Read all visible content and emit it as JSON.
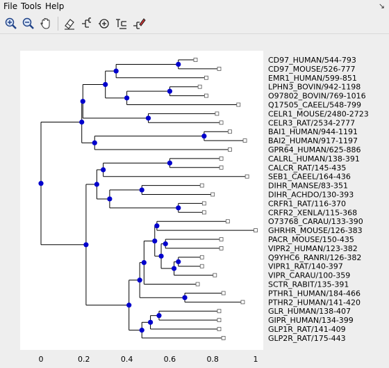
{
  "menu": {
    "file": "File",
    "tools": "Tools",
    "help": "Help"
  },
  "toolbar": {
    "icons": [
      "zoom-in-icon",
      "zoom-out-icon",
      "hand-pan-icon",
      "eraser-icon",
      "tree-bracket-icon",
      "reroot-icon",
      "tree-text-icon",
      "tree-color-icon"
    ]
  },
  "colors": {
    "node": "#0000cc",
    "edge": "#000000",
    "plot_background": "#ffffff",
    "window_background": "#eeeeee"
  },
  "axis": {
    "min": 0,
    "max": 1,
    "ticks": [
      "0",
      "0.2",
      "0.4",
      "0.6",
      "0.8",
      "1"
    ]
  },
  "tree": {
    "leaves": [
      {
        "label": "CD97_HUMAN/544-793",
        "dist": 0.72
      },
      {
        "label": "CD97_MOUSE/526-777",
        "dist": 0.83
      },
      {
        "label": "EMR1_HUMAN/599-851",
        "dist": 0.77
      },
      {
        "label": "LPHN3_BOVIN/942-1198",
        "dist": 0.74
      },
      {
        "label": "O97802_BOVIN/769-1016",
        "dist": 0.77
      },
      {
        "label": "Q17505_CAEEL/548-799",
        "dist": 0.92
      },
      {
        "label": "CELR1_MOUSE/2480-2723",
        "dist": 0.82
      },
      {
        "label": "CELR3_RAT/2534-2777",
        "dist": 0.84
      },
      {
        "label": "BAI1_HUMAN/944-1191",
        "dist": 0.88
      },
      {
        "label": "BAI2_HUMAN/917-1197",
        "dist": 0.95
      },
      {
        "label": "GPR64_HUMAN/625-886",
        "dist": 0.88
      },
      {
        "label": "CALRL_HUMAN/138-391",
        "dist": 0.84
      },
      {
        "label": "CALCR_RAT/145-435",
        "dist": 0.84
      },
      {
        "label": "SEB1_CAEEL/164-436",
        "dist": 0.96
      },
      {
        "label": "DIHR_MANSE/83-351",
        "dist": 0.75
      },
      {
        "label": "DIHR_ACHDO/130-393",
        "dist": 0.8
      },
      {
        "label": "CRFR1_RAT/116-370",
        "dist": 0.76
      },
      {
        "label": "CRFR2_XENLA/115-368",
        "dist": 0.76
      },
      {
        "label": "O73768_CARAU/133-390",
        "dist": 0.87
      },
      {
        "label": "GHRHR_MOUSE/126-383",
        "dist": 1.0
      },
      {
        "label": "PACR_MOUSE/150-435",
        "dist": 0.84
      },
      {
        "label": "VIPR2_HUMAN/123-382",
        "dist": 0.84
      },
      {
        "label": "Q9YHC6_RANRI/126-382",
        "dist": 0.75
      },
      {
        "label": "VIPR1_RAT/140-397",
        "dist": 0.75
      },
      {
        "label": "VIPR_CARAU/100-359",
        "dist": 0.81
      },
      {
        "label": "SCTR_RABIT/135-391",
        "dist": 0.73
      },
      {
        "label": "PTHR1_HUMAN/184-466",
        "dist": 0.85
      },
      {
        "label": "PTHR2_HUMAN/141-420",
        "dist": 0.94
      },
      {
        "label": "GLR_HUMAN/138-407",
        "dist": 0.83
      },
      {
        "label": "GIPR_HUMAN/134-399",
        "dist": 0.83
      },
      {
        "label": "GLP1R_RAT/141-409",
        "dist": 0.83
      },
      {
        "label": "GLP2R_RAT/175-443",
        "dist": 0.85
      }
    ],
    "root": {
      "d": 0.0,
      "c": [
        {
          "d": 0.19,
          "c": [
            {
              "d": 0.195,
              "c": [
                {
                  "d": 0.3,
                  "c": [
                    {
                      "d": 0.35,
                      "c": [
                        {
                          "d": 0.64,
                          "c": [
                            0,
                            1
                          ]
                        },
                        2
                      ]
                    },
                    {
                      "d": 0.4,
                      "c": [
                        {
                          "d": 0.6,
                          "c": [
                            3,
                            4
                          ]
                        },
                        5
                      ]
                    }
                  ]
                },
                {
                  "d": 0.5,
                  "c": [
                    6,
                    7
                  ]
                }
              ]
            },
            {
              "d": 0.25,
              "c": [
                {
                  "d": 0.76,
                  "c": [
                    8,
                    9
                  ]
                },
                10
              ]
            }
          ]
        },
        {
          "d": 0.21,
          "c": [
            {
              "d": 0.26,
              "c": [
                {
                  "d": 0.29,
                  "c": [
                    {
                      "d": 0.6,
                      "c": [
                        11,
                        12
                      ]
                    },
                    13
                  ]
                },
                {
                  "d": 0.32,
                  "c": [
                    {
                      "d": 0.47,
                      "c": [
                        14,
                        15
                      ]
                    },
                    {
                      "d": 0.64,
                      "c": [
                        16,
                        17
                      ]
                    }
                  ]
                }
              ]
            },
            {
              "d": 0.41,
              "c": [
                {
                  "d": 0.46,
                  "c": [
                    {
                      "d": 0.48,
                      "c": [
                        {
                          "d": 0.53,
                          "c": [
                            {
                              "d": 0.54,
                              "c": [
                                18,
                                19
                              ]
                            },
                            {
                              "d": 0.56,
                              "c": [
                                {
                                  "d": 0.58,
                                  "c": [
                                    20,
                                    21
                                  ]
                                },
                                {
                                  "d": 0.62,
                                  "c": [
                                    {
                                      "d": 0.64,
                                      "c": [
                                        22,
                                        23
                                      ]
                                    },
                                    24
                                  ]
                                }
                              ]
                            }
                          ]
                        },
                        25
                      ]
                    },
                    {
                      "d": 0.67,
                      "c": [
                        26,
                        27
                      ]
                    }
                  ]
                },
                {
                  "d": 0.47,
                  "c": [
                    {
                      "d": 0.51,
                      "c": [
                        {
                          "d": 0.55,
                          "c": [
                            28,
                            29
                          ]
                        },
                        30
                      ]
                    },
                    31
                  ]
                }
              ]
            }
          ]
        }
      ]
    }
  }
}
